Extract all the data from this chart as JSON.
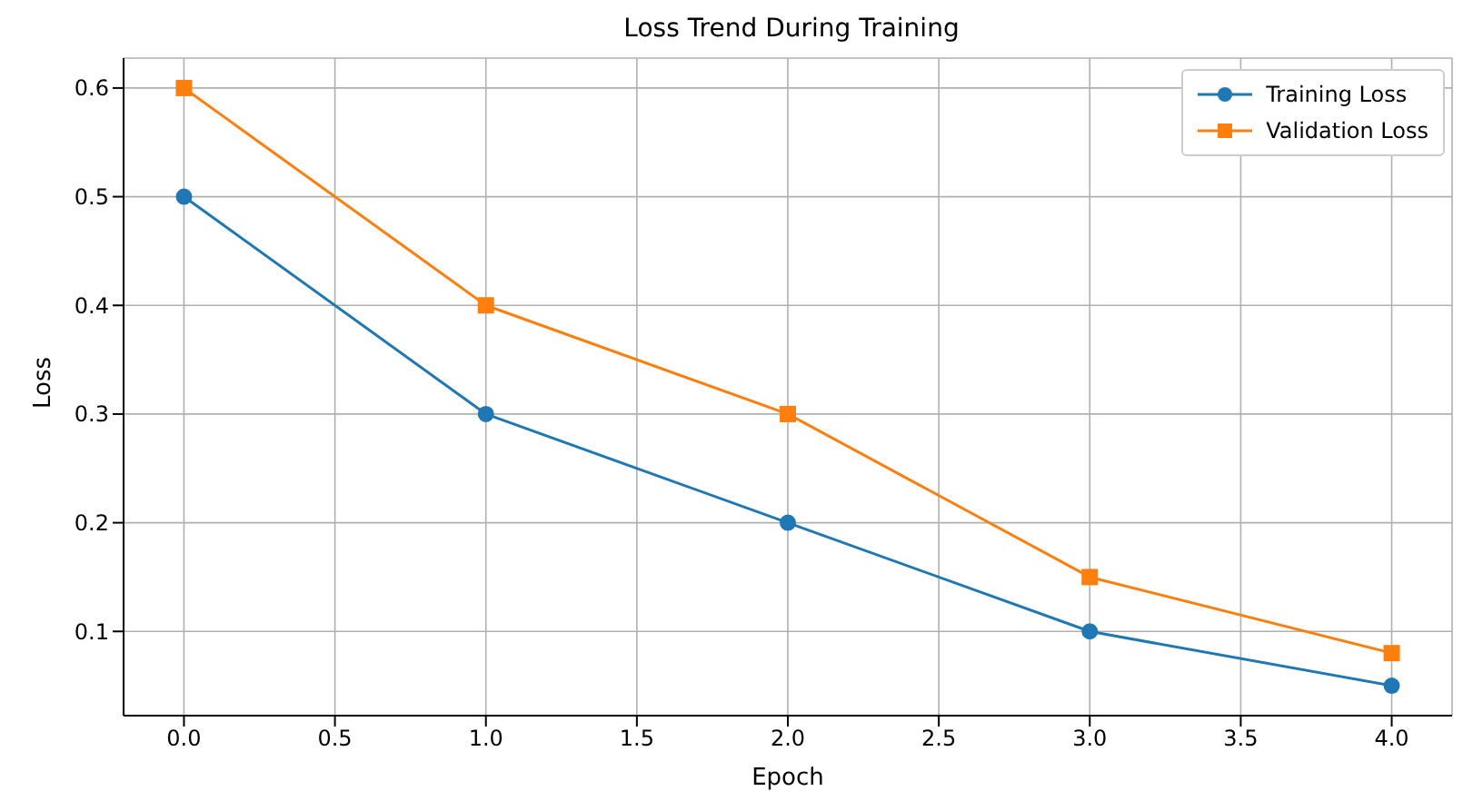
{
  "chart_data": {
    "type": "line",
    "title": "Loss Trend During Training",
    "xlabel": "Epoch",
    "ylabel": "Loss",
    "x": [
      0,
      1,
      2,
      3,
      4
    ],
    "series": [
      {
        "name": "Training Loss",
        "color": "#1f77b4",
        "marker": "circle",
        "values": [
          0.5,
          0.3,
          0.2,
          0.1,
          0.05
        ]
      },
      {
        "name": "Validation Loss",
        "color": "#ff7f0e",
        "marker": "square",
        "values": [
          0.6,
          0.4,
          0.3,
          0.15,
          0.08
        ]
      }
    ],
    "xlim": [
      -0.2,
      4.2
    ],
    "xticks": [
      {
        "value": 0,
        "label": "0.0"
      },
      0.5,
      {
        "value": 1,
        "label": "1.0"
      },
      1.5,
      {
        "value": 2,
        "label": "2.0"
      },
      2.5,
      {
        "value": 3,
        "label": "3.0"
      },
      3.5,
      {
        "value": 4,
        "label": "4.0"
      }
    ],
    "ylim": [
      0.0225,
      0.6275
    ],
    "yticks": [
      0.1,
      0.2,
      0.3,
      0.4,
      0.5,
      0.6
    ],
    "grid": true,
    "legend": "top right",
    "line_style": "solid"
  }
}
